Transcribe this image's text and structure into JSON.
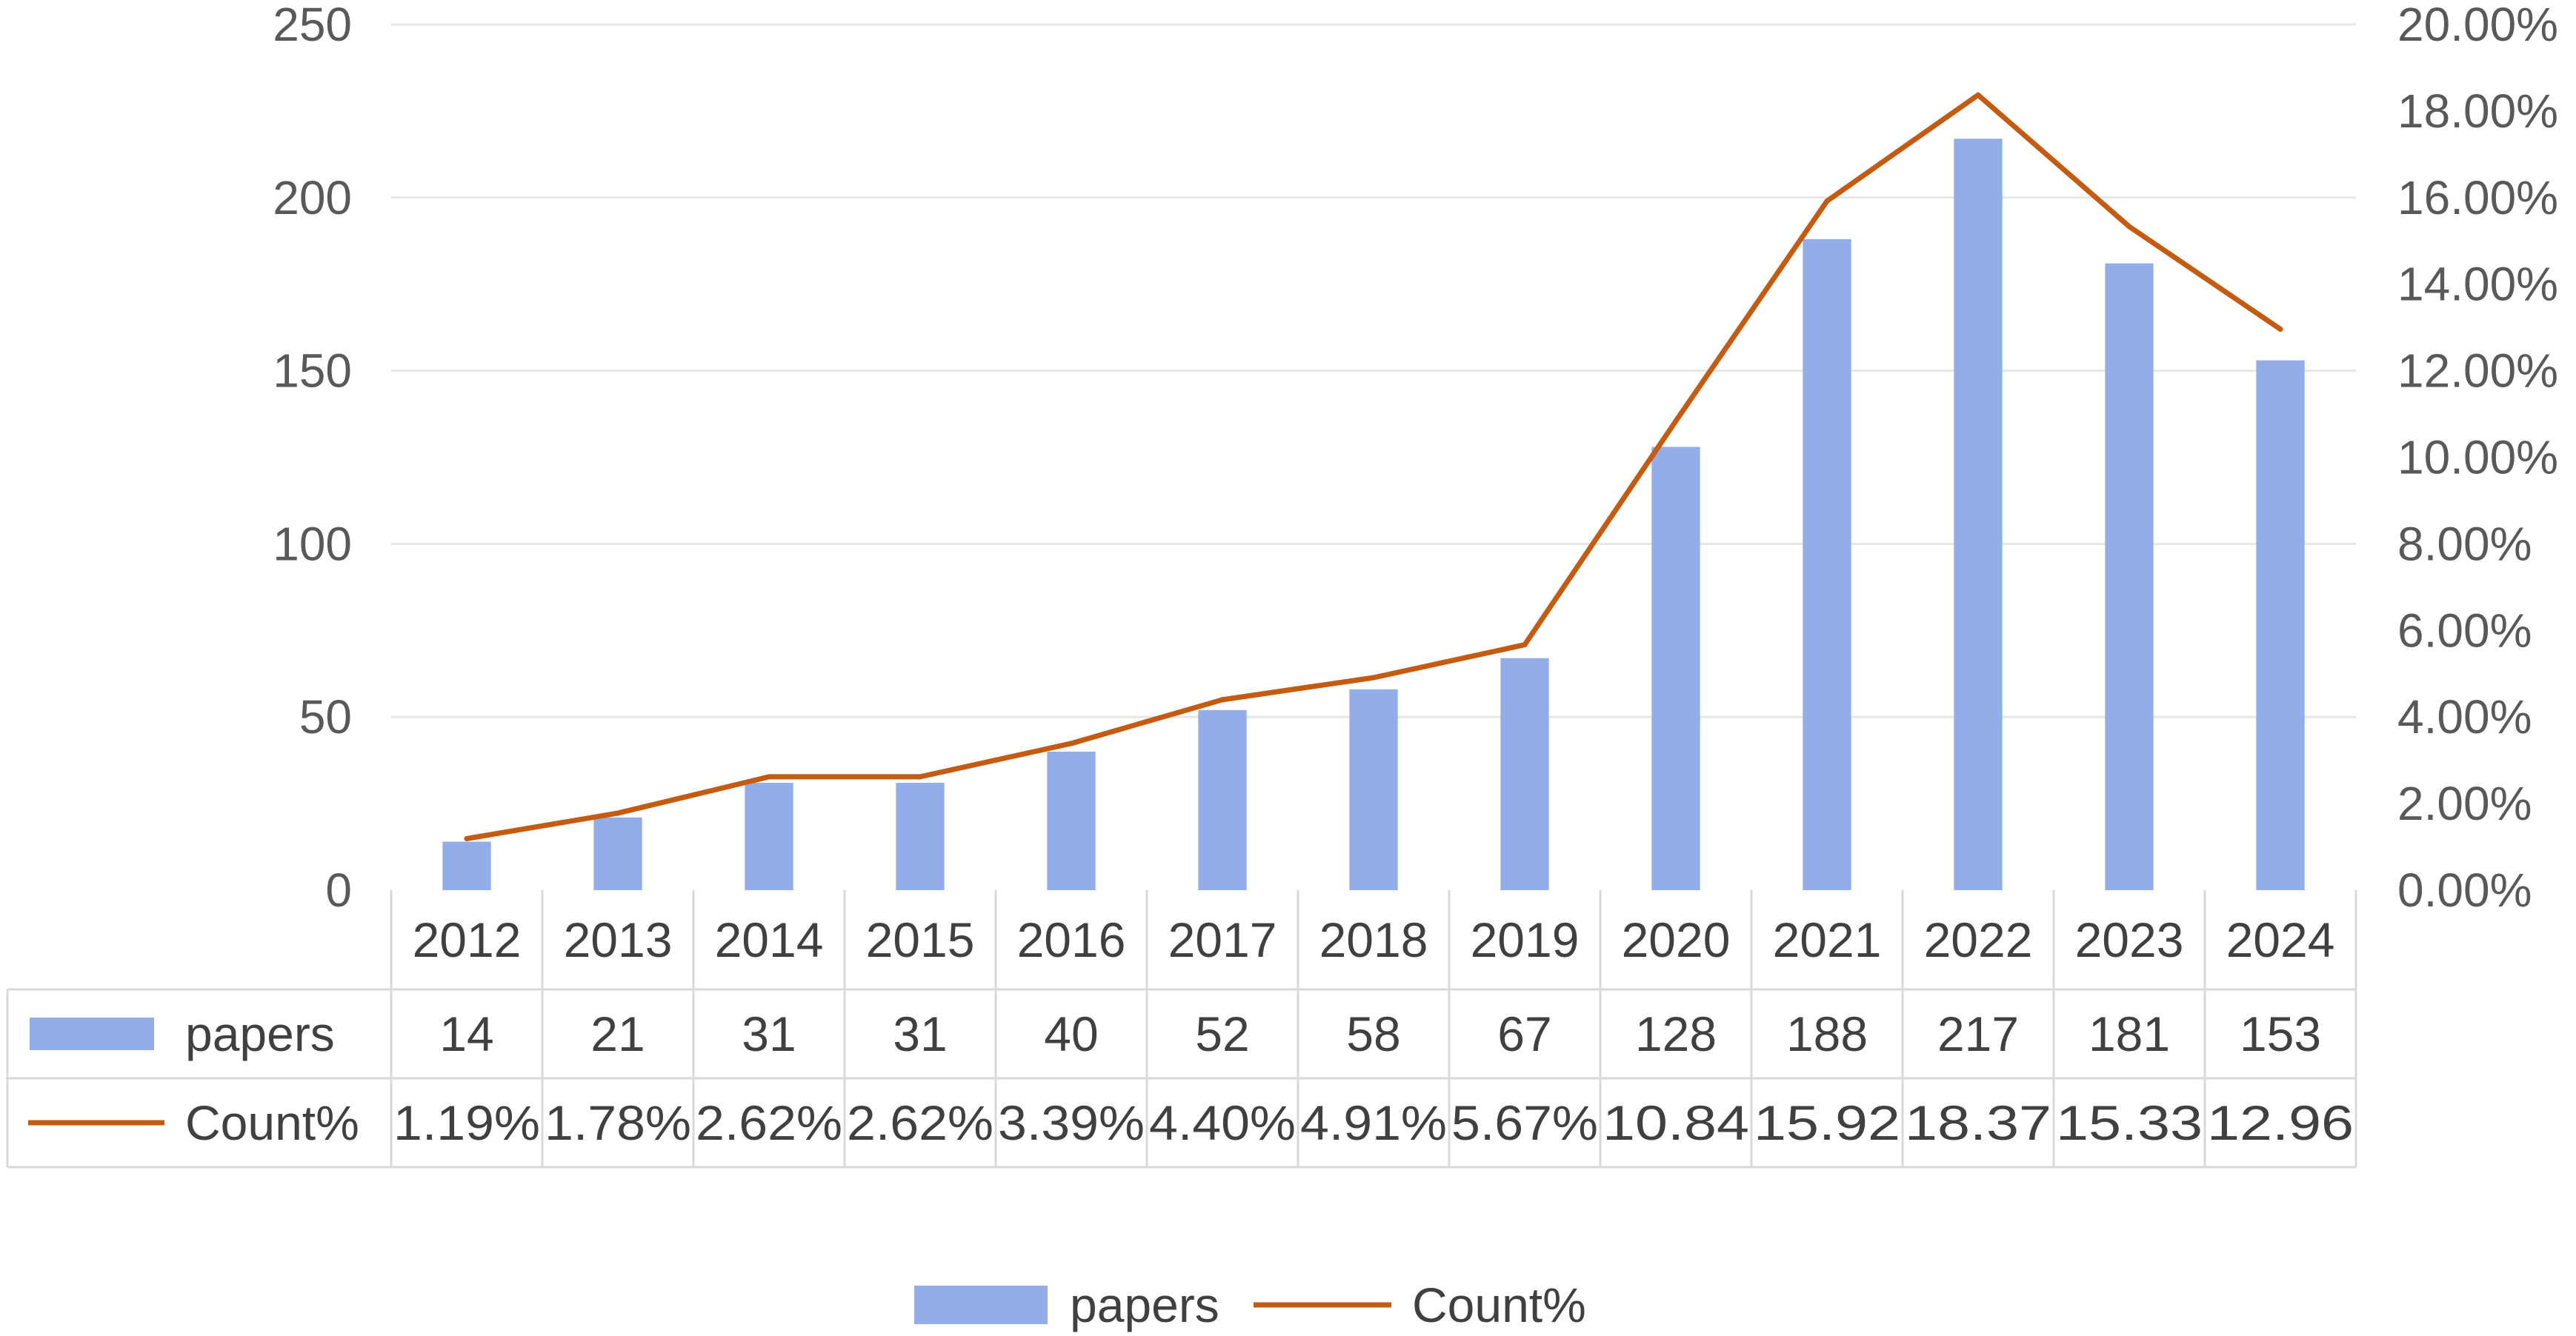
{
  "chart_data": {
    "type": "bar",
    "categories": [
      "2012",
      "2013",
      "2014",
      "2015",
      "2016",
      "2017",
      "2018",
      "2019",
      "2020",
      "2021",
      "2022",
      "2023",
      "2024"
    ],
    "series": [
      {
        "name": "papers",
        "kind": "bar",
        "axis": "left",
        "color": "#92ADE8",
        "values": [
          14,
          21,
          31,
          31,
          40,
          52,
          58,
          67,
          128,
          188,
          217,
          181,
          153
        ],
        "labels": [
          "14",
          "21",
          "31",
          "31",
          "40",
          "52",
          "58",
          "67",
          "128",
          "188",
          "217",
          "181",
          "153"
        ]
      },
      {
        "name": "Count%",
        "kind": "line",
        "axis": "right",
        "color": "#C55A11",
        "values": [
          1.19,
          1.78,
          2.62,
          2.62,
          3.39,
          4.4,
          4.91,
          5.67,
          10.84,
          15.92,
          18.37,
          15.33,
          12.96
        ],
        "labels": [
          "1.19%",
          "1.78%",
          "2.62%",
          "2.62%",
          "3.39%",
          "4.40%",
          "4.91%",
          "5.67%",
          "10.84",
          "15.92",
          "18.37",
          "15.33",
          "12.96"
        ]
      }
    ],
    "y_left": {
      "lim": [
        0,
        250
      ],
      "ticks": [
        0,
        50,
        100,
        150,
        200,
        250
      ],
      "tick_labels": [
        "0",
        "50",
        "100",
        "150",
        "200",
        "250"
      ]
    },
    "y_right": {
      "lim": [
        0,
        20
      ],
      "ticks": [
        0,
        2,
        4,
        6,
        8,
        10,
        12,
        14,
        16,
        18,
        20
      ],
      "tick_labels": [
        "0.00%",
        "2.00%",
        "4.00%",
        "6.00%",
        "8.00%",
        "10.00%",
        "12.00%",
        "14.00%",
        "16.00%",
        "18.00%",
        "20.00%"
      ]
    },
    "grid": true,
    "data_table": true,
    "legend": {
      "position": "bottom",
      "entries": [
        "papers",
        "Count%"
      ]
    },
    "title": "",
    "xlabel": "",
    "ylabel": ""
  }
}
